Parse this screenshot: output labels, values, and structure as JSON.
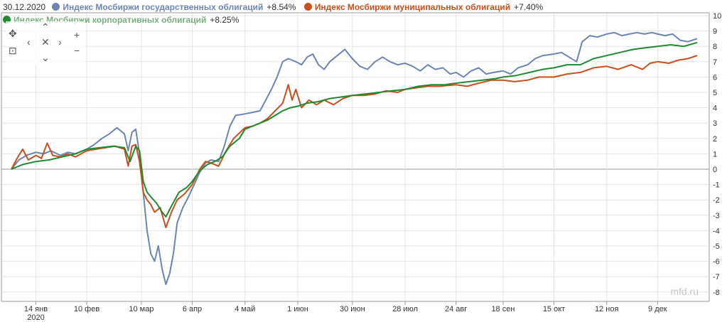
{
  "header": {
    "date": "30.12.2020",
    "series": [
      {
        "name": "Индекс Мосбиржи государственных облигаций",
        "change": "+8.54%",
        "color": "#6d84b4"
      },
      {
        "name": "Индекс Мосбиржи муниципальных облигаций",
        "change": "+7.40%",
        "color": "#c94f1c"
      },
      {
        "name": "Индекс Мосбиржи корпоративных облигаций",
        "change": "+8.25%",
        "color": "#1f8a2e"
      }
    ]
  },
  "watermark": "mfd.ru",
  "chart_data": {
    "type": "line",
    "x_range": [
      "2020-01-01",
      "2020-12-30"
    ],
    "ylim": [
      -8.5,
      10.5
    ],
    "y_ticks": [
      -8,
      -7,
      -6,
      -5,
      -4,
      -3,
      -2,
      -1,
      0,
      1,
      2,
      3,
      4,
      5,
      6,
      7,
      8,
      9,
      10
    ],
    "x_ticks": [
      {
        "date": "2020-01-14",
        "label": "14 янв",
        "sub": "2020"
      },
      {
        "date": "2020-02-10",
        "label": "10 фев"
      },
      {
        "date": "2020-03-10",
        "label": "10 мар"
      },
      {
        "date": "2020-04-06",
        "label": "6 апр"
      },
      {
        "date": "2020-05-04",
        "label": "4 май"
      },
      {
        "date": "2020-06-01",
        "label": "1 июн"
      },
      {
        "date": "2020-06-30",
        "label": "30 июн"
      },
      {
        "date": "2020-07-28",
        "label": "28 июл"
      },
      {
        "date": "2020-08-24",
        "label": "24 авг"
      },
      {
        "date": "2020-09-18",
        "label": "18 сен"
      },
      {
        "date": "2020-10-15",
        "label": "15 окт"
      },
      {
        "date": "2020-11-12",
        "label": "12 ноя"
      },
      {
        "date": "2020-12-09",
        "label": "9 дек"
      }
    ],
    "grid": true,
    "series": [
      {
        "name": "Индекс Мосбиржи государственных облигаций",
        "color": "#6d84b4",
        "points": [
          [
            "2020-01-01",
            0
          ],
          [
            "2020-01-05",
            0.6
          ],
          [
            "2020-01-09",
            0.9
          ],
          [
            "2020-01-14",
            1.1
          ],
          [
            "2020-01-18",
            1.0
          ],
          [
            "2020-01-22",
            1.2
          ],
          [
            "2020-01-27",
            0.9
          ],
          [
            "2020-01-31",
            1.1
          ],
          [
            "2020-02-04",
            1.0
          ],
          [
            "2020-02-10",
            1.3
          ],
          [
            "2020-02-14",
            1.6
          ],
          [
            "2020-02-18",
            2.0
          ],
          [
            "2020-02-22",
            2.3
          ],
          [
            "2020-02-26",
            2.7
          ],
          [
            "2020-03-01",
            2.3
          ],
          [
            "2020-03-03",
            1.2
          ],
          [
            "2020-03-05",
            2.4
          ],
          [
            "2020-03-07",
            2.6
          ],
          [
            "2020-03-09",
            1.0
          ],
          [
            "2020-03-11",
            -1.5
          ],
          [
            "2020-03-13",
            -4.0
          ],
          [
            "2020-03-15",
            -5.5
          ],
          [
            "2020-03-17",
            -6.0
          ],
          [
            "2020-03-19",
            -5.0
          ],
          [
            "2020-03-21",
            -6.5
          ],
          [
            "2020-03-23",
            -7.5
          ],
          [
            "2020-03-25",
            -6.8
          ],
          [
            "2020-03-27",
            -5.5
          ],
          [
            "2020-03-29",
            -3.5
          ],
          [
            "2020-04-01",
            -2.5
          ],
          [
            "2020-04-04",
            -1.8
          ],
          [
            "2020-04-07",
            -1.0
          ],
          [
            "2020-04-10",
            -0.2
          ],
          [
            "2020-04-13",
            0.4
          ],
          [
            "2020-04-16",
            0.6
          ],
          [
            "2020-04-20",
            0.5
          ],
          [
            "2020-04-23",
            1.5
          ],
          [
            "2020-04-26",
            2.8
          ],
          [
            "2020-04-29",
            3.5
          ],
          [
            "2020-05-04",
            3.6
          ],
          [
            "2020-05-08",
            3.7
          ],
          [
            "2020-05-12",
            3.8
          ],
          [
            "2020-05-15",
            4.5
          ],
          [
            "2020-05-18",
            5.2
          ],
          [
            "2020-05-21",
            6.0
          ],
          [
            "2020-05-24",
            7.0
          ],
          [
            "2020-05-27",
            7.2
          ],
          [
            "2020-05-31",
            7.0
          ],
          [
            "2020-06-03",
            6.8
          ],
          [
            "2020-06-06",
            7.3
          ],
          [
            "2020-06-09",
            7.5
          ],
          [
            "2020-06-12",
            6.8
          ],
          [
            "2020-06-15",
            6.5
          ],
          [
            "2020-06-18",
            7.0
          ],
          [
            "2020-06-22",
            7.4
          ],
          [
            "2020-06-26",
            7.8
          ],
          [
            "2020-06-30",
            7.2
          ],
          [
            "2020-07-04",
            6.7
          ],
          [
            "2020-07-08",
            6.5
          ],
          [
            "2020-07-12",
            7.0
          ],
          [
            "2020-07-16",
            7.3
          ],
          [
            "2020-07-20",
            7.0
          ],
          [
            "2020-07-24",
            6.8
          ],
          [
            "2020-07-28",
            6.9
          ],
          [
            "2020-08-01",
            6.7
          ],
          [
            "2020-08-05",
            6.4
          ],
          [
            "2020-08-09",
            6.8
          ],
          [
            "2020-08-13",
            6.5
          ],
          [
            "2020-08-17",
            6.6
          ],
          [
            "2020-08-21",
            6.2
          ],
          [
            "2020-08-24",
            6.3
          ],
          [
            "2020-08-28",
            6.0
          ],
          [
            "2020-09-01",
            6.4
          ],
          [
            "2020-09-05",
            6.6
          ],
          [
            "2020-09-09",
            6.2
          ],
          [
            "2020-09-13",
            6.3
          ],
          [
            "2020-09-18",
            6.4
          ],
          [
            "2020-09-22",
            6.2
          ],
          [
            "2020-09-26",
            6.6
          ],
          [
            "2020-10-01",
            6.8
          ],
          [
            "2020-10-05",
            7.2
          ],
          [
            "2020-10-09",
            7.4
          ],
          [
            "2020-10-15",
            7.5
          ],
          [
            "2020-10-19",
            7.6
          ],
          [
            "2020-10-23",
            7.3
          ],
          [
            "2020-10-27",
            7.0
          ],
          [
            "2020-10-30",
            8.3
          ],
          [
            "2020-11-03",
            8.7
          ],
          [
            "2020-11-07",
            8.6
          ],
          [
            "2020-11-12",
            8.8
          ],
          [
            "2020-11-16",
            8.9
          ],
          [
            "2020-11-20",
            8.7
          ],
          [
            "2020-11-24",
            8.8
          ],
          [
            "2020-11-28",
            8.9
          ],
          [
            "2020-12-02",
            8.8
          ],
          [
            "2020-12-06",
            8.9
          ],
          [
            "2020-12-09",
            8.8
          ],
          [
            "2020-12-13",
            8.7
          ],
          [
            "2020-12-17",
            8.8
          ],
          [
            "2020-12-21",
            8.4
          ],
          [
            "2020-12-25",
            8.3
          ],
          [
            "2020-12-30",
            8.5
          ]
        ]
      },
      {
        "name": "Индекс Мосбиржи муниципальных облигаций",
        "color": "#c94f1c",
        "points": [
          [
            "2020-01-01",
            0
          ],
          [
            "2020-01-04",
            0.7
          ],
          [
            "2020-01-07",
            1.3
          ],
          [
            "2020-01-10",
            0.6
          ],
          [
            "2020-01-14",
            0.9
          ],
          [
            "2020-01-17",
            0.7
          ],
          [
            "2020-01-20",
            1.7
          ],
          [
            "2020-01-23",
            0.9
          ],
          [
            "2020-01-27",
            0.8
          ],
          [
            "2020-01-31",
            1.0
          ],
          [
            "2020-02-04",
            0.8
          ],
          [
            "2020-02-10",
            1.2
          ],
          [
            "2020-02-15",
            1.3
          ],
          [
            "2020-02-20",
            1.4
          ],
          [
            "2020-02-25",
            1.5
          ],
          [
            "2020-03-01",
            1.3
          ],
          [
            "2020-03-03",
            0.2
          ],
          [
            "2020-03-05",
            1.5
          ],
          [
            "2020-03-07",
            1.6
          ],
          [
            "2020-03-09",
            0.5
          ],
          [
            "2020-03-11",
            -1.5
          ],
          [
            "2020-03-13",
            -2.0
          ],
          [
            "2020-03-15",
            -2.3
          ],
          [
            "2020-03-17",
            -2.8
          ],
          [
            "2020-03-20",
            -2.5
          ],
          [
            "2020-03-23",
            -3.8
          ],
          [
            "2020-03-26",
            -2.8
          ],
          [
            "2020-03-29",
            -2.0
          ],
          [
            "2020-04-02",
            -1.6
          ],
          [
            "2020-04-06",
            -1.0
          ],
          [
            "2020-04-10",
            0.0
          ],
          [
            "2020-04-13",
            0.5
          ],
          [
            "2020-04-16",
            0.4
          ],
          [
            "2020-04-20",
            0.2
          ],
          [
            "2020-04-24",
            1.2
          ],
          [
            "2020-04-28",
            2.0
          ],
          [
            "2020-05-04",
            2.7
          ],
          [
            "2020-05-08",
            2.8
          ],
          [
            "2020-05-12",
            3.0
          ],
          [
            "2020-05-16",
            3.3
          ],
          [
            "2020-05-20",
            3.8
          ],
          [
            "2020-05-24",
            4.3
          ],
          [
            "2020-05-27",
            5.5
          ],
          [
            "2020-05-29",
            4.5
          ],
          [
            "2020-05-31",
            5.2
          ],
          [
            "2020-06-03",
            4.0
          ],
          [
            "2020-06-07",
            4.5
          ],
          [
            "2020-06-11",
            4.2
          ],
          [
            "2020-06-15",
            4.5
          ],
          [
            "2020-06-20",
            4.2
          ],
          [
            "2020-06-25",
            4.6
          ],
          [
            "2020-06-30",
            4.8
          ],
          [
            "2020-07-06",
            4.8
          ],
          [
            "2020-07-12",
            4.9
          ],
          [
            "2020-07-18",
            5.1
          ],
          [
            "2020-07-24",
            5.0
          ],
          [
            "2020-07-28",
            5.2
          ],
          [
            "2020-08-03",
            5.3
          ],
          [
            "2020-08-09",
            5.4
          ],
          [
            "2020-08-15",
            5.4
          ],
          [
            "2020-08-24",
            5.5
          ],
          [
            "2020-08-30",
            5.4
          ],
          [
            "2020-09-05",
            5.6
          ],
          [
            "2020-09-12",
            5.8
          ],
          [
            "2020-09-18",
            5.8
          ],
          [
            "2020-09-24",
            5.7
          ],
          [
            "2020-10-01",
            5.8
          ],
          [
            "2020-10-07",
            6.0
          ],
          [
            "2020-10-15",
            6.0
          ],
          [
            "2020-10-22",
            6.2
          ],
          [
            "2020-10-29",
            6.3
          ],
          [
            "2020-11-05",
            6.6
          ],
          [
            "2020-11-12",
            6.7
          ],
          [
            "2020-11-18",
            6.5
          ],
          [
            "2020-11-25",
            6.8
          ],
          [
            "2020-12-01",
            6.5
          ],
          [
            "2020-12-05",
            6.9
          ],
          [
            "2020-12-09",
            7.0
          ],
          [
            "2020-12-15",
            6.9
          ],
          [
            "2020-12-20",
            7.1
          ],
          [
            "2020-12-25",
            7.2
          ],
          [
            "2020-12-30",
            7.4
          ]
        ]
      },
      {
        "name": "Индекс Мосбиржи корпоративных облигаций",
        "color": "#1f8a2e",
        "points": [
          [
            "2020-01-01",
            0
          ],
          [
            "2020-01-07",
            0.3
          ],
          [
            "2020-01-14",
            0.5
          ],
          [
            "2020-01-21",
            0.6
          ],
          [
            "2020-01-28",
            0.8
          ],
          [
            "2020-02-04",
            1.0
          ],
          [
            "2020-02-10",
            1.3
          ],
          [
            "2020-02-17",
            1.4
          ],
          [
            "2020-02-24",
            1.5
          ],
          [
            "2020-03-01",
            1.4
          ],
          [
            "2020-03-04",
            0.5
          ],
          [
            "2020-03-07",
            1.5
          ],
          [
            "2020-03-09",
            1.2
          ],
          [
            "2020-03-11",
            -0.8
          ],
          [
            "2020-03-13",
            -1.5
          ],
          [
            "2020-03-15",
            -1.8
          ],
          [
            "2020-03-18",
            -2.2
          ],
          [
            "2020-03-21",
            -2.8
          ],
          [
            "2020-03-23",
            -3.1
          ],
          [
            "2020-03-26",
            -2.4
          ],
          [
            "2020-03-30",
            -1.5
          ],
          [
            "2020-04-03",
            -1.2
          ],
          [
            "2020-04-06",
            -0.8
          ],
          [
            "2020-04-10",
            -0.1
          ],
          [
            "2020-04-14",
            0.3
          ],
          [
            "2020-04-18",
            0.5
          ],
          [
            "2020-04-22",
            0.8
          ],
          [
            "2020-04-26",
            1.5
          ],
          [
            "2020-05-01",
            2.0
          ],
          [
            "2020-05-04",
            2.6
          ],
          [
            "2020-05-08",
            2.8
          ],
          [
            "2020-05-12",
            3.0
          ],
          [
            "2020-05-16",
            3.2
          ],
          [
            "2020-05-20",
            3.5
          ],
          [
            "2020-05-24",
            3.8
          ],
          [
            "2020-05-28",
            4.0
          ],
          [
            "2020-06-01",
            4.1
          ],
          [
            "2020-06-06",
            4.3
          ],
          [
            "2020-06-12",
            4.4
          ],
          [
            "2020-06-18",
            4.6
          ],
          [
            "2020-06-24",
            4.7
          ],
          [
            "2020-06-30",
            4.8
          ],
          [
            "2020-07-07",
            4.9
          ],
          [
            "2020-07-14",
            5.0
          ],
          [
            "2020-07-21",
            5.1
          ],
          [
            "2020-07-28",
            5.2
          ],
          [
            "2020-08-04",
            5.4
          ],
          [
            "2020-08-11",
            5.5
          ],
          [
            "2020-08-18",
            5.5
          ],
          [
            "2020-08-24",
            5.6
          ],
          [
            "2020-08-31",
            5.7
          ],
          [
            "2020-09-07",
            5.8
          ],
          [
            "2020-09-14",
            5.9
          ],
          [
            "2020-09-18",
            6.0
          ],
          [
            "2020-09-25",
            6.1
          ],
          [
            "2020-10-02",
            6.3
          ],
          [
            "2020-10-09",
            6.5
          ],
          [
            "2020-10-15",
            6.6
          ],
          [
            "2020-10-22",
            6.8
          ],
          [
            "2020-10-29",
            6.8
          ],
          [
            "2020-11-05",
            7.2
          ],
          [
            "2020-11-12",
            7.4
          ],
          [
            "2020-11-19",
            7.6
          ],
          [
            "2020-11-26",
            7.8
          ],
          [
            "2020-12-02",
            7.9
          ],
          [
            "2020-12-09",
            8.0
          ],
          [
            "2020-12-16",
            8.1
          ],
          [
            "2020-12-23",
            8.0
          ],
          [
            "2020-12-30",
            8.25
          ]
        ]
      }
    ]
  }
}
